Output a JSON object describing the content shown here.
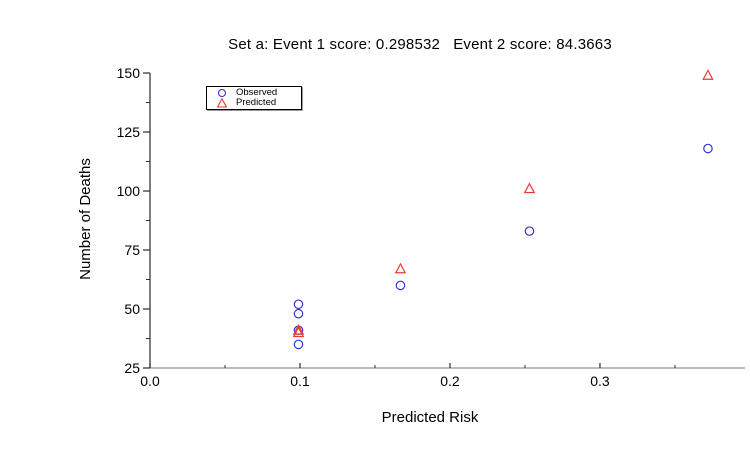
{
  "page": {
    "background": "#ffffff"
  },
  "chart_data": {
    "type": "scatter",
    "title": "Set a: Event 1 score: 0.298532   Event 2 score: 84.3663",
    "xlabel": "Predicted Risk",
    "ylabel": "Number of Deaths",
    "xlim": [
      0,
      0.3967
    ],
    "ylim": [
      25,
      150
    ],
    "grid": false,
    "legend_position": "top-left-inside",
    "colors": {
      "observed": "#3232d2",
      "predicted": "#e93a32",
      "x_axis_line": "#949494",
      "y_axis_line": "#2b2b2b",
      "tick": "#2b2b2b",
      "text": "#000000"
    },
    "x_ticks": {
      "major": [
        {
          "value": 0.0,
          "label": "0.0"
        },
        {
          "value": 0.1,
          "label": "0.1"
        },
        {
          "value": 0.2,
          "label": "0.2"
        },
        {
          "value": 0.3,
          "label": "0.3"
        }
      ],
      "minor": [
        0.05,
        0.15,
        0.25,
        0.35
      ]
    },
    "y_ticks": {
      "major": [
        {
          "value": 150,
          "label": "150"
        },
        {
          "value": 125,
          "label": "125"
        },
        {
          "value": 100,
          "label": "100"
        },
        {
          "value": 75,
          "label": "75"
        },
        {
          "value": 50,
          "label": "50"
        },
        {
          "value": 25,
          "label": "25"
        }
      ],
      "minor": [
        137.5,
        112.5,
        87.5,
        62.5,
        37.5
      ]
    },
    "series": [
      {
        "name": "Observed",
        "marker": "circle",
        "color": "#3232d2",
        "points": [
          [
            0.099,
            52
          ],
          [
            0.099,
            48
          ],
          [
            0.099,
            41
          ],
          [
            0.099,
            35
          ],
          [
            0.167,
            60
          ],
          [
            0.253,
            83
          ],
          [
            0.372,
            118
          ]
        ]
      },
      {
        "name": "Predicted",
        "marker": "triangle",
        "color": "#e93a32",
        "points": [
          [
            0.099,
            41
          ],
          [
            0.099,
            40
          ],
          [
            0.167,
            67
          ],
          [
            0.253,
            101
          ],
          [
            0.372,
            149
          ]
        ]
      }
    ]
  }
}
